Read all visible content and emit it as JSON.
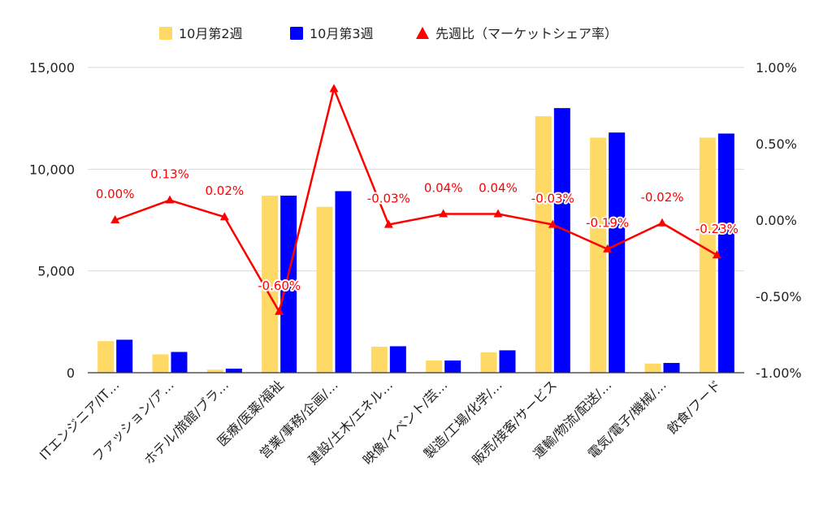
{
  "chart_data": {
    "type": "bar",
    "categories": [
      "ITエンジニア/IT…",
      "ファッション/ア…",
      "ホテル/旅館/ブラ…",
      "医療/医薬/福祉",
      "営業/事務/企画/…",
      "建設/土木/エネル…",
      "映像/イベント/芸…",
      "製造/工場/化学/…",
      "販売/接客/サービス",
      "運輸/物流/配送/…",
      "電気/電子/機械/…",
      "飲食/フード"
    ],
    "series": [
      {
        "name": "10月第2週",
        "type": "bar",
        "axis": "left",
        "color": "#ffd966",
        "values": [
          1550,
          900,
          150,
          8700,
          8150,
          1280,
          600,
          1000,
          12600,
          11550,
          450,
          11550
        ]
      },
      {
        "name": "10月第3週",
        "type": "bar",
        "axis": "left",
        "color": "#0000ff",
        "values": [
          1620,
          1020,
          200,
          8700,
          8920,
          1300,
          600,
          1100,
          13000,
          11800,
          480,
          11750
        ]
      },
      {
        "name": "先週比（マーケットシェア率）",
        "type": "line",
        "axis": "right",
        "color": "#ff0000",
        "marker": "triangle",
        "values": [
          0.0,
          0.13,
          0.02,
          -0.6,
          0.86,
          -0.03,
          0.04,
          0.04,
          -0.03,
          -0.19,
          -0.02,
          -0.23
        ],
        "labels": [
          "0.00%",
          "0.13%",
          "0.02%",
          "-0.60%",
          "",
          "-0.03%",
          "0.04%",
          "0.04%",
          "-0.03%",
          "-0.19%",
          "-0.02%",
          "-0.23%"
        ]
      }
    ],
    "left_axis": {
      "min": 0,
      "max": 15000,
      "ticks": [
        "0",
        "5,000",
        "10,000",
        "15,000"
      ],
      "tick_values": [
        0,
        5000,
        10000,
        15000
      ]
    },
    "right_axis": {
      "min": -1.0,
      "max": 1.0,
      "ticks": [
        "-1.00%",
        "-0.50%",
        "0.00%",
        "0.50%",
        "1.00%"
      ],
      "tick_values": [
        -1.0,
        -0.5,
        0.0,
        0.5,
        1.0
      ]
    },
    "grid": true,
    "legend_position": "top"
  }
}
